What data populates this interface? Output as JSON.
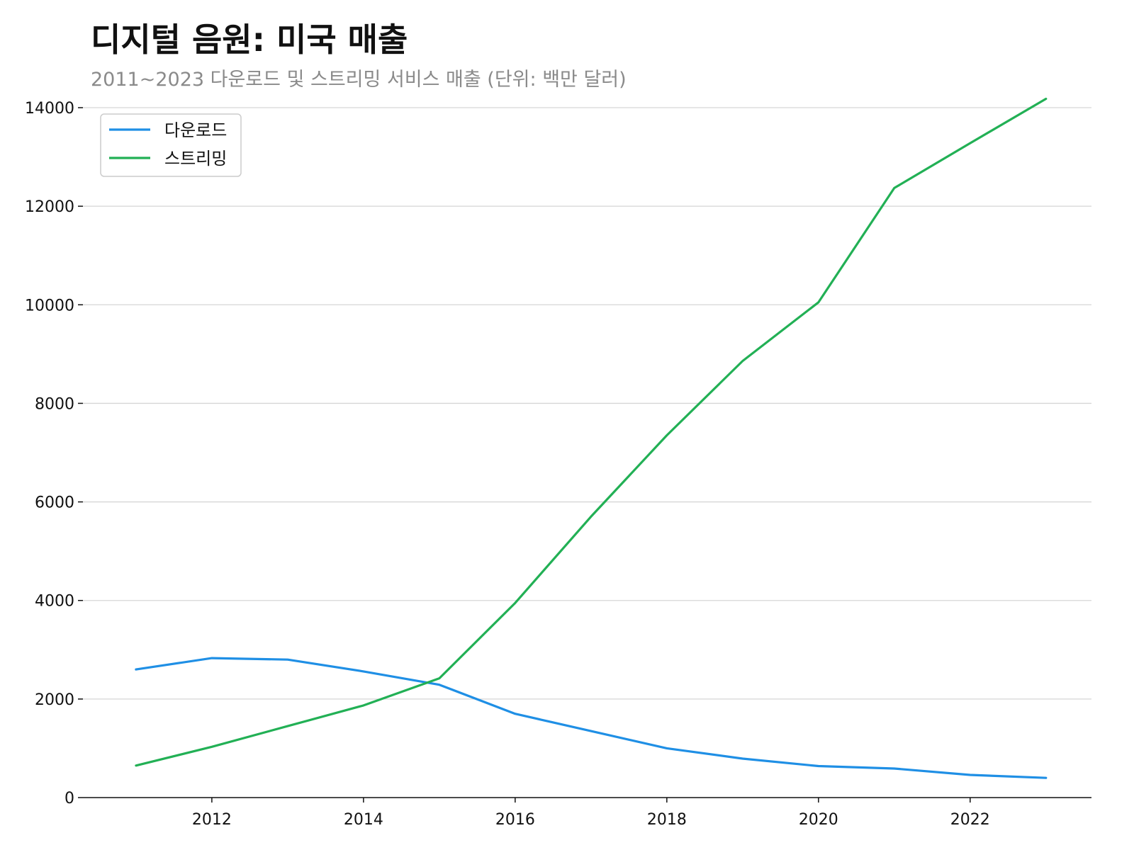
{
  "title": "디지털 음원: 미국 매출",
  "subtitle": "2011~2023 다운로드 및 스트리밍 서비스 매출 (단위: 백만 달러)",
  "colors": {
    "downloads": "#1f8fe5",
    "streaming": "#22b055",
    "grid": "#d6d6d6",
    "axis": "#111111"
  },
  "chart_data": {
    "type": "line",
    "title": "디지털 음원: 미국 매출",
    "subtitle": "2011~2023 다운로드 및 스트리밍 서비스 매출 (단위: 백만 달러)",
    "xlabel": "",
    "ylabel": "",
    "x": [
      2011,
      2012,
      2013,
      2014,
      2015,
      2016,
      2017,
      2018,
      2019,
      2020,
      2021,
      2022,
      2023
    ],
    "xlim": [
      2010.3,
      2023.6
    ],
    "ylim": [
      0,
      14000
    ],
    "x_ticks": [
      "2012",
      "2014",
      "2016",
      "2018",
      "2020",
      "2022"
    ],
    "y_ticks": [
      "0",
      "2000",
      "4000",
      "6000",
      "8000",
      "10000",
      "12000",
      "14000"
    ],
    "grid": "horizontal",
    "legend_position": "top-left",
    "series": [
      {
        "name": "다운로드",
        "color": "#1f8fe5",
        "values": [
          2600,
          2830,
          2800,
          2560,
          2290,
          1700,
          1350,
          1000,
          790,
          640,
          590,
          460,
          400
        ]
      },
      {
        "name": "스트리밍",
        "color": "#22b055",
        "values": [
          650,
          1030,
          1450,
          1870,
          2420,
          3950,
          5700,
          7350,
          8860,
          10050,
          12370,
          13280,
          14180
        ]
      }
    ]
  }
}
